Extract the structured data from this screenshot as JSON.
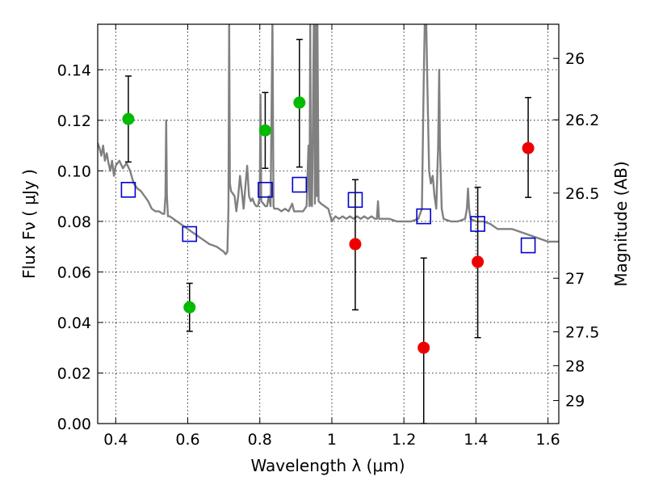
{
  "chart_data": {
    "type": "scatter",
    "xlabel": "Wavelength  λ (μm)",
    "ylabel": "Flux  Fν  ( μJy )",
    "ylabel_right": "Magnitude (AB)",
    "xlim": [
      0.35,
      1.63
    ],
    "ylim": [
      0.0,
      0.158
    ],
    "grid": true,
    "x_ticks": [
      0.4,
      0.6,
      0.8,
      1.0,
      1.2,
      1.4,
      1.6
    ],
    "x_tick_labels": [
      "0.4",
      "0.6",
      "0.8",
      "1",
      "1.2",
      "1.4",
      "1.6"
    ],
    "y_ticks": [
      0.0,
      0.02,
      0.04,
      0.06,
      0.08,
      0.1,
      0.12,
      0.14
    ],
    "y_tick_labels": [
      "0.00",
      "0.02",
      "0.04",
      "0.06",
      "0.08",
      "0.10",
      "0.12",
      "0.14"
    ],
    "right_ticks": [
      {
        "label": "26",
        "flux": 0.1445
      },
      {
        "label": "26.2",
        "flux": 0.1202
      },
      {
        "label": "26.5",
        "flux": 0.0912
      },
      {
        "label": "27",
        "flux": 0.0575
      },
      {
        "label": "27.5",
        "flux": 0.0363
      },
      {
        "label": "28",
        "flux": 0.0229
      },
      {
        "label": "29",
        "flux": 0.0091
      }
    ],
    "colors": {
      "green": "#00bb00",
      "red": "#ee0000",
      "model": "#0000cc",
      "spectrum": "#808080",
      "errorbar": "#000000"
    },
    "green_points": [
      {
        "x": 0.435,
        "y": 0.1205,
        "lo": 0.1035,
        "hi": 0.1375
      },
      {
        "x": 0.605,
        "y": 0.046,
        "lo": 0.0365,
        "hi": 0.0555
      },
      {
        "x": 0.815,
        "y": 0.116,
        "lo": 0.101,
        "hi": 0.131
      },
      {
        "x": 0.91,
        "y": 0.127,
        "lo": 0.1015,
        "hi": 0.152
      }
    ],
    "red_points": [
      {
        "x": 1.065,
        "y": 0.071,
        "lo": 0.045,
        "hi": 0.0965
      },
      {
        "x": 1.255,
        "y": 0.03,
        "lo": 0.0,
        "hi": 0.0655
      },
      {
        "x": 1.405,
        "y": 0.064,
        "lo": 0.034,
        "hi": 0.0935
      },
      {
        "x": 1.545,
        "y": 0.109,
        "lo": 0.0895,
        "hi": 0.129
      }
    ],
    "model_points": [
      {
        "x": 0.435,
        "y": 0.0925
      },
      {
        "x": 0.605,
        "y": 0.075
      },
      {
        "x": 0.815,
        "y": 0.0925
      },
      {
        "x": 0.91,
        "y": 0.0945
      },
      {
        "x": 1.065,
        "y": 0.0885
      },
      {
        "x": 1.255,
        "y": 0.082
      },
      {
        "x": 1.405,
        "y": 0.079
      },
      {
        "x": 1.545,
        "y": 0.0705
      }
    ],
    "spectrum": [
      [
        0.35,
        0.111
      ],
      [
        0.355,
        0.109
      ],
      [
        0.36,
        0.106
      ],
      [
        0.365,
        0.11
      ],
      [
        0.37,
        0.104
      ],
      [
        0.375,
        0.107
      ],
      [
        0.38,
        0.103
      ],
      [
        0.385,
        0.1
      ],
      [
        0.39,
        0.104
      ],
      [
        0.395,
        0.098
      ],
      [
        0.4,
        0.102
      ],
      [
        0.41,
        0.104
      ],
      [
        0.42,
        0.101
      ],
      [
        0.43,
        0.103
      ],
      [
        0.44,
        0.1
      ],
      [
        0.45,
        0.095
      ],
      [
        0.46,
        0.093
      ],
      [
        0.47,
        0.092
      ],
      [
        0.48,
        0.09
      ],
      [
        0.49,
        0.088
      ],
      [
        0.5,
        0.085
      ],
      [
        0.51,
        0.084
      ],
      [
        0.52,
        0.084
      ],
      [
        0.53,
        0.083
      ],
      [
        0.535,
        0.083
      ],
      [
        0.538,
        0.09
      ],
      [
        0.54,
        0.12
      ],
      [
        0.542,
        0.09
      ],
      [
        0.545,
        0.082
      ],
      [
        0.55,
        0.082
      ],
      [
        0.56,
        0.081
      ],
      [
        0.58,
        0.079
      ],
      [
        0.6,
        0.077
      ],
      [
        0.62,
        0.075
      ],
      [
        0.64,
        0.073
      ],
      [
        0.66,
        0.071
      ],
      [
        0.68,
        0.07
      ],
      [
        0.69,
        0.069
      ],
      [
        0.7,
        0.068
      ],
      [
        0.705,
        0.067
      ],
      [
        0.71,
        0.068
      ],
      [
        0.713,
        0.085
      ],
      [
        0.715,
        0.16
      ],
      [
        0.717,
        0.095
      ],
      [
        0.72,
        0.092
      ],
      [
        0.725,
        0.091
      ],
      [
        0.73,
        0.09
      ],
      [
        0.735,
        0.084
      ],
      [
        0.74,
        0.09
      ],
      [
        0.745,
        0.098
      ],
      [
        0.75,
        0.092
      ],
      [
        0.755,
        0.085
      ],
      [
        0.76,
        0.094
      ],
      [
        0.765,
        0.102
      ],
      [
        0.77,
        0.09
      ],
      [
        0.775,
        0.088
      ],
      [
        0.78,
        0.089
      ],
      [
        0.785,
        0.087
      ],
      [
        0.79,
        0.086
      ],
      [
        0.795,
        0.086
      ],
      [
        0.8,
        0.09
      ],
      [
        0.802,
        0.13
      ],
      [
        0.804,
        0.088
      ],
      [
        0.81,
        0.087
      ],
      [
        0.815,
        0.086
      ],
      [
        0.82,
        0.086
      ],
      [
        0.825,
        0.09
      ],
      [
        0.83,
        0.086
      ],
      [
        0.835,
        0.16
      ],
      [
        0.838,
        0.086
      ],
      [
        0.84,
        0.085
      ],
      [
        0.85,
        0.085
      ],
      [
        0.86,
        0.084
      ],
      [
        0.87,
        0.085
      ],
      [
        0.88,
        0.084
      ],
      [
        0.89,
        0.087
      ],
      [
        0.895,
        0.084
      ],
      [
        0.9,
        0.084
      ],
      [
        0.91,
        0.084
      ],
      [
        0.92,
        0.084
      ],
      [
        0.93,
        0.086
      ],
      [
        0.935,
        0.11
      ],
      [
        0.938,
        0.086
      ],
      [
        0.94,
        0.16
      ],
      [
        0.942,
        0.087
      ],
      [
        0.945,
        0.086
      ],
      [
        0.95,
        0.16
      ],
      [
        0.953,
        0.087
      ],
      [
        0.955,
        0.16
      ],
      [
        0.958,
        0.09
      ],
      [
        0.96,
        0.16
      ],
      [
        0.963,
        0.088
      ],
      [
        0.97,
        0.087
      ],
      [
        0.98,
        0.086
      ],
      [
        0.99,
        0.085
      ],
      [
        1.0,
        0.08
      ],
      [
        1.01,
        0.082
      ],
      [
        1.02,
        0.081
      ],
      [
        1.03,
        0.082
      ],
      [
        1.04,
        0.081
      ],
      [
        1.05,
        0.082
      ],
      [
        1.06,
        0.081
      ],
      [
        1.07,
        0.082
      ],
      [
        1.08,
        0.081
      ],
      [
        1.09,
        0.082
      ],
      [
        1.1,
        0.081
      ],
      [
        1.11,
        0.082
      ],
      [
        1.12,
        0.081
      ],
      [
        1.125,
        0.081
      ],
      [
        1.128,
        0.088
      ],
      [
        1.131,
        0.081
      ],
      [
        1.14,
        0.081
      ],
      [
        1.16,
        0.081
      ],
      [
        1.18,
        0.08
      ],
      [
        1.2,
        0.08
      ],
      [
        1.22,
        0.08
      ],
      [
        1.24,
        0.081
      ],
      [
        1.25,
        0.085
      ],
      [
        1.255,
        0.135
      ],
      [
        1.258,
        0.16
      ],
      [
        1.262,
        0.16
      ],
      [
        1.265,
        0.135
      ],
      [
        1.27,
        0.1
      ],
      [
        1.275,
        0.095
      ],
      [
        1.28,
        0.098
      ],
      [
        1.285,
        0.09
      ],
      [
        1.29,
        0.085
      ],
      [
        1.295,
        0.11
      ],
      [
        1.298,
        0.14
      ],
      [
        1.3,
        0.11
      ],
      [
        1.305,
        0.085
      ],
      [
        1.31,
        0.081
      ],
      [
        1.33,
        0.08
      ],
      [
        1.35,
        0.08
      ],
      [
        1.37,
        0.081
      ],
      [
        1.375,
        0.085
      ],
      [
        1.378,
        0.093
      ],
      [
        1.381,
        0.085
      ],
      [
        1.385,
        0.081
      ],
      [
        1.4,
        0.08
      ],
      [
        1.42,
        0.08
      ],
      [
        1.44,
        0.079
      ],
      [
        1.46,
        0.077
      ],
      [
        1.48,
        0.077
      ],
      [
        1.5,
        0.077
      ],
      [
        1.52,
        0.076
      ],
      [
        1.54,
        0.075
      ],
      [
        1.56,
        0.074
      ],
      [
        1.58,
        0.073
      ],
      [
        1.6,
        0.072
      ],
      [
        1.63,
        0.072
      ]
    ]
  }
}
